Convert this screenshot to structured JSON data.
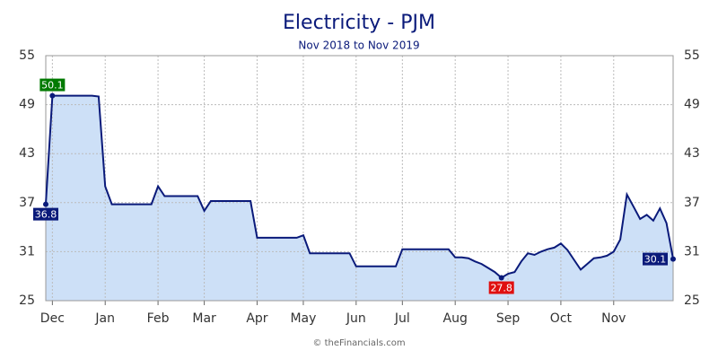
{
  "chart_data": {
    "type": "area-line",
    "title": "Electricity - PJM",
    "subtitle": "Nov 2018 to Nov 2019",
    "footer": "© theFinancials.com",
    "categories": [
      null,
      "Dec",
      null,
      null,
      null,
      null,
      null,
      null,
      null,
      "Jan",
      null,
      null,
      null,
      null,
      null,
      null,
      null,
      "Feb",
      null,
      null,
      null,
      null,
      null,
      null,
      "Mar",
      null,
      null,
      null,
      null,
      null,
      null,
      null,
      "Apr",
      null,
      null,
      null,
      null,
      null,
      null,
      "May",
      null,
      null,
      null,
      null,
      null,
      null,
      null,
      "Jun",
      null,
      null,
      null,
      null,
      null,
      null,
      "Jul",
      null,
      null,
      null,
      null,
      null,
      null,
      null,
      "Aug",
      null,
      null,
      null,
      null,
      null,
      null,
      null,
      "Sep",
      null,
      null,
      null,
      null,
      null,
      null,
      null,
      "Oct",
      null,
      null,
      null,
      null,
      null,
      null,
      null,
      "Nov",
      null,
      null,
      null,
      null,
      null,
      null,
      null,
      null,
      null
    ],
    "values": [
      36.8,
      50.1,
      50.1,
      50.1,
      50.1,
      50.1,
      50.1,
      50.1,
      50.0,
      39.0,
      36.8,
      36.8,
      36.8,
      36.8,
      36.8,
      36.8,
      36.8,
      39.0,
      37.8,
      37.8,
      37.8,
      37.8,
      37.8,
      37.8,
      36.0,
      37.2,
      37.2,
      37.2,
      37.2,
      37.2,
      37.2,
      37.2,
      32.7,
      32.7,
      32.7,
      32.7,
      32.7,
      32.7,
      32.7,
      33.0,
      30.8,
      30.8,
      30.8,
      30.8,
      30.8,
      30.8,
      30.8,
      29.2,
      29.2,
      29.2,
      29.2,
      29.2,
      29.2,
      29.2,
      31.3,
      31.3,
      31.3,
      31.3,
      31.3,
      31.3,
      31.3,
      31.3,
      30.3,
      30.3,
      30.2,
      29.8,
      29.5,
      29.0,
      28.5,
      27.8,
      28.3,
      28.5,
      29.8,
      30.8,
      30.6,
      31.0,
      31.3,
      31.5,
      32.0,
      31.2,
      30.0,
      28.8,
      29.5,
      30.2,
      30.3,
      30.5,
      31.0,
      32.5,
      38.0,
      36.5,
      35.0,
      35.5,
      34.8,
      36.3,
      34.5,
      30.1
    ],
    "value_labels": [
      "36.8",
      "50.1",
      null,
      null,
      null,
      null,
      null,
      null,
      null,
      null,
      null,
      null,
      null,
      null,
      null,
      null,
      null,
      null,
      null,
      null,
      null,
      null,
      null,
      null,
      null,
      null,
      null,
      null,
      null,
      null,
      null,
      null,
      null,
      null,
      null,
      null,
      null,
      null,
      null,
      null,
      null,
      null,
      null,
      null,
      null,
      null,
      null,
      null,
      null,
      null,
      null,
      null,
      null,
      null,
      null,
      null,
      null,
      null,
      null,
      null,
      null,
      null,
      null,
      null,
      null,
      null,
      null,
      null,
      null,
      "27.8",
      null,
      null,
      null,
      null,
      null,
      null,
      null,
      null,
      null,
      null,
      null,
      null,
      null,
      null,
      null,
      null,
      null,
      null,
      null,
      null,
      null,
      null,
      null,
      null,
      null,
      "30.1"
    ],
    "line_color": "#0a1a7a",
    "fill_color": "#cde0f7",
    "label_color": "#0a1a7a",
    "max_color": "#007a00",
    "min_color": "#e01010",
    "ylim": [
      25,
      55
    ],
    "yticks": [
      25,
      31,
      37,
      43,
      49,
      55
    ],
    "grid": true
  }
}
